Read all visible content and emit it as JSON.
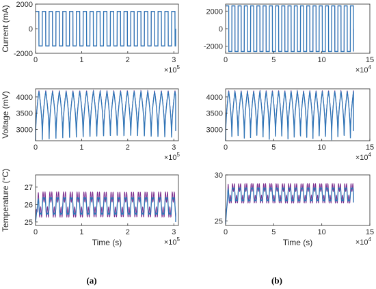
{
  "panel_labels": [
    "(a)",
    "(b)"
  ],
  "colors": {
    "measured": "#7e2f8e",
    "estimated": "#2e75b6",
    "axis": "#262626"
  },
  "chart_data": [
    {
      "type": "line",
      "panel": "(a)",
      "row": "current",
      "ylabel": "Current (mA)",
      "xlabel": "",
      "xlim": [
        0,
        3.1
      ],
      "ylim": [
        -2000,
        2000
      ],
      "x_multiplier": "×10",
      "x_multiplier_exp": "5",
      "xticks": [
        0,
        1,
        2,
        3
      ],
      "yticks": [
        -2000,
        0,
        2000
      ],
      "waveform": "square",
      "cycles": 20.6,
      "x_end": 3.04,
      "amp_high": 1400,
      "amp_low": -1400,
      "tail": 0
    },
    {
      "type": "line",
      "panel": "(b)",
      "row": "current",
      "ylabel": "",
      "xlabel": "",
      "xlim": [
        0,
        15
      ],
      "ylim": [
        -2800,
        2800
      ],
      "x_multiplier": "×10",
      "x_multiplier_exp": "4",
      "xticks": [
        0,
        5,
        10,
        15
      ],
      "yticks": [
        -2000,
        0,
        2000
      ],
      "waveform": "square",
      "cycles": 20.5,
      "x_end": 13.3,
      "amp_high": 2600,
      "amp_low": -2600,
      "tail": 0
    },
    {
      "type": "line",
      "panel": "(a)",
      "row": "voltage",
      "ylabel": "Voltage (mV)",
      "xlabel": "",
      "xlim": [
        0,
        3.1
      ],
      "ylim": [
        2650,
        4250
      ],
      "x_multiplier": "×10",
      "x_multiplier_exp": "5",
      "xticks": [
        0,
        1,
        2,
        3
      ],
      "yticks": [
        3000,
        3500,
        4000
      ],
      "waveform": "sawtooth",
      "cycles": 20.6,
      "x_end": 3.04,
      "v_low": 2650,
      "v_high": 4200,
      "tail": 2950
    },
    {
      "type": "line",
      "panel": "(b)",
      "row": "voltage",
      "ylabel": "",
      "xlabel": "",
      "xlim": [
        0,
        15
      ],
      "ylim": [
        2650,
        4250
      ],
      "x_multiplier": "×10",
      "x_multiplier_exp": "4",
      "xticks": [
        0,
        5,
        10,
        15
      ],
      "yticks": [
        3000,
        3500,
        4000
      ],
      "waveform": "sawtooth",
      "cycles": 20.5,
      "x_end": 13.3,
      "v_low": 2650,
      "v_high": 4200,
      "tail": 2950
    },
    {
      "type": "line",
      "panel": "(a)",
      "row": "temperature",
      "ylabel": "Temperature (°C)",
      "xlabel": "Time (s)",
      "xlim": [
        0,
        3.1
      ],
      "ylim": [
        24.8,
        27.7
      ],
      "x_multiplier": "×10",
      "x_multiplier_exp": "5",
      "xticks": [
        0,
        1,
        2,
        3
      ],
      "yticks": [
        25,
        26,
        27
      ],
      "waveform": "noisy",
      "cycles": 20.6,
      "x_end": 3.04,
      "mean": 26.0,
      "swing": 0.55,
      "tail": 25.0
    },
    {
      "type": "line",
      "panel": "(b)",
      "row": "temperature",
      "ylabel": "",
      "xlabel": "Time (s)",
      "xlim": [
        0,
        15
      ],
      "ylim": [
        24.5,
        30
      ],
      "x_multiplier": "×10",
      "x_multiplier_exp": "4",
      "xticks": [
        0,
        5,
        10,
        15
      ],
      "yticks": [
        25,
        30
      ],
      "waveform": "noisy",
      "cycles": 20.5,
      "x_end": 13.3,
      "mean": 28.0,
      "swing": 0.8,
      "tail": 27.0
    }
  ]
}
